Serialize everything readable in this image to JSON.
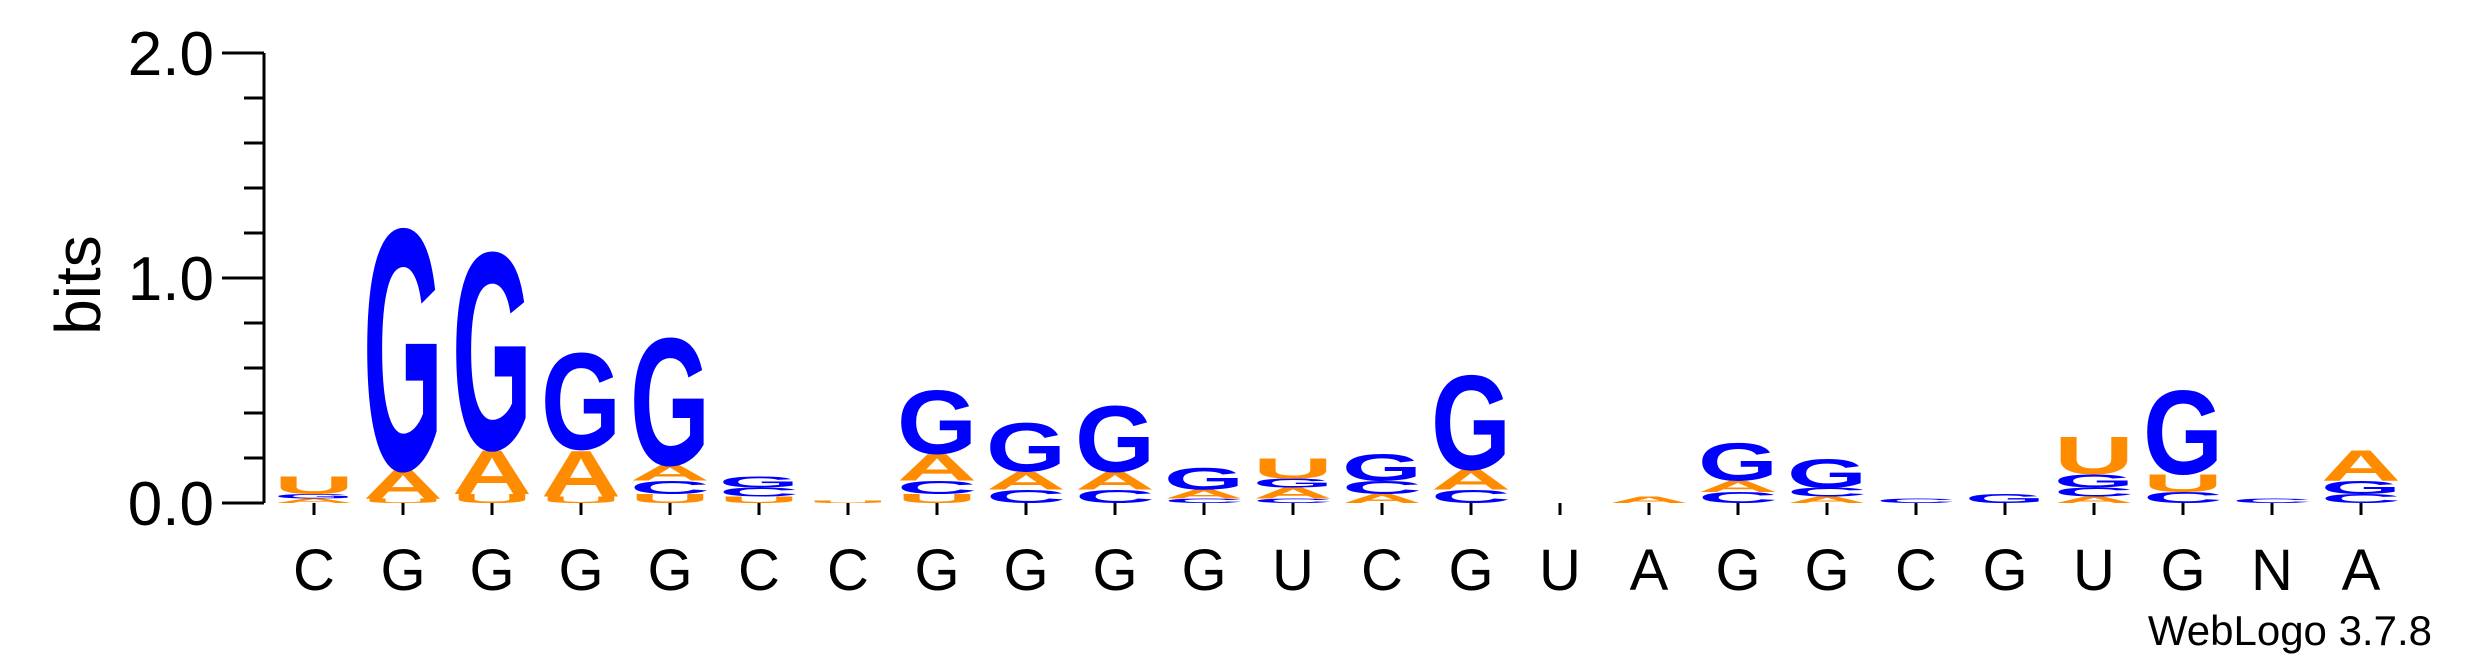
{
  "chart_data": {
    "type": "sequence-logo",
    "ylabel": "bits",
    "ylim": [
      0,
      2.0
    ],
    "y_ticks": [
      {
        "value": 0.0,
        "label": "0.0"
      },
      {
        "value": 1.0,
        "label": "1.0"
      },
      {
        "value": 2.0,
        "label": "2.0"
      }
    ],
    "colors": {
      "A": "#ff8c00",
      "U": "#ff8c00",
      "G": "#0000ff",
      "C": "#0000ff"
    },
    "x_labels": [
      "C",
      "G",
      "G",
      "G",
      "G",
      "C",
      "C",
      "G",
      "G",
      "G",
      "G",
      "U",
      "C",
      "G",
      "U",
      "A",
      "G",
      "G",
      "C",
      "G",
      "U",
      "G",
      "N",
      "A"
    ],
    "positions": [
      {
        "stack": [
          [
            "A",
            0.02
          ],
          [
            "G",
            0.02
          ],
          [
            "U",
            0.08
          ]
        ]
      },
      {
        "stack": [
          [
            "U",
            0.02
          ],
          [
            "A",
            0.13
          ],
          [
            "G",
            1.1
          ]
        ]
      },
      {
        "stack": [
          [
            "U",
            0.04
          ],
          [
            "A",
            0.2
          ],
          [
            "G",
            0.9
          ]
        ]
      },
      {
        "stack": [
          [
            "U",
            0.03
          ],
          [
            "A",
            0.21
          ],
          [
            "G",
            0.44
          ]
        ]
      },
      {
        "stack": [
          [
            "U",
            0.04
          ],
          [
            "C",
            0.06
          ],
          [
            "A",
            0.07
          ],
          [
            "G",
            0.58
          ]
        ]
      },
      {
        "stack": [
          [
            "U",
            0.03
          ],
          [
            "C",
            0.04
          ],
          [
            "G",
            0.05
          ]
        ]
      },
      {
        "stack": [
          [
            "U",
            0.01
          ]
        ]
      },
      {
        "stack": [
          [
            "U",
            0.04
          ],
          [
            "C",
            0.06
          ],
          [
            "A",
            0.12
          ],
          [
            "G",
            0.29
          ]
        ]
      },
      {
        "stack": [
          [
            "C",
            0.06
          ],
          [
            "A",
            0.08
          ],
          [
            "G",
            0.22
          ]
        ]
      },
      {
        "stack": [
          [
            "C",
            0.06
          ],
          [
            "A",
            0.08
          ],
          [
            "G",
            0.3
          ]
        ]
      },
      {
        "stack": [
          [
            "C",
            0.02
          ],
          [
            "A",
            0.04
          ],
          [
            "G",
            0.1
          ]
        ]
      },
      {
        "stack": [
          [
            "C",
            0.02
          ],
          [
            "A",
            0.05
          ],
          [
            "G",
            0.04
          ],
          [
            "U",
            0.09
          ]
        ]
      },
      {
        "stack": [
          [
            "A",
            0.04
          ],
          [
            "C",
            0.06
          ],
          [
            "G",
            0.12
          ]
        ]
      },
      {
        "stack": [
          [
            "C",
            0.06
          ],
          [
            "A",
            0.09
          ],
          [
            "G",
            0.43
          ]
        ]
      },
      {
        "stack": []
      },
      {
        "stack": [
          [
            "A",
            0.03
          ]
        ]
      },
      {
        "stack": [
          [
            "C",
            0.05
          ],
          [
            "A",
            0.05
          ],
          [
            "G",
            0.17
          ]
        ]
      },
      {
        "stack": [
          [
            "A",
            0.03
          ],
          [
            "C",
            0.04
          ],
          [
            "G",
            0.13
          ]
        ]
      },
      {
        "stack": [
          [
            "C",
            0.02
          ]
        ]
      },
      {
        "stack": [
          [
            "G",
            0.04
          ]
        ]
      },
      {
        "stack": [
          [
            "A",
            0.03
          ],
          [
            "C",
            0.04
          ],
          [
            "G",
            0.06
          ],
          [
            "U",
            0.17
          ]
        ]
      },
      {
        "stack": [
          [
            "C",
            0.05
          ],
          [
            "U",
            0.08
          ],
          [
            "G",
            0.38
          ]
        ]
      },
      {
        "stack": [
          [
            "C",
            0.02
          ]
        ]
      },
      {
        "stack": [
          [
            "C",
            0.04
          ],
          [
            "G",
            0.06
          ],
          [
            "A",
            0.14
          ]
        ]
      }
    ],
    "credit": "WebLogo 3.7.8"
  }
}
